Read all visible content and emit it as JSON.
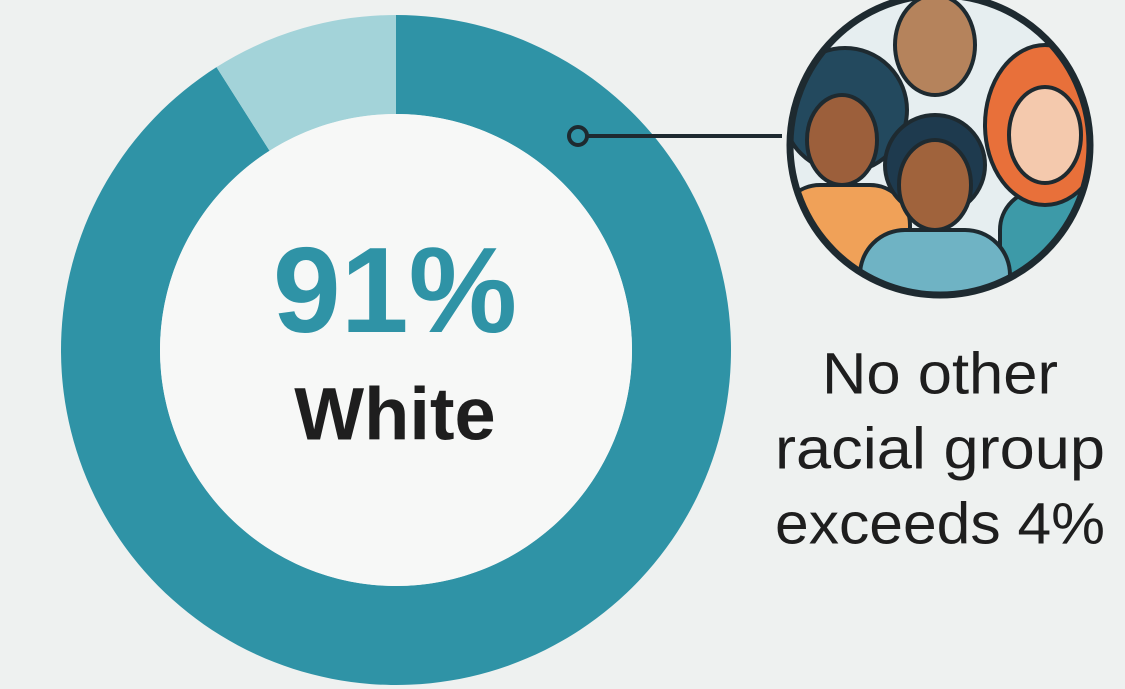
{
  "chart_data": {
    "type": "donut",
    "categories": [
      "White",
      null
    ],
    "values": [
      91,
      9
    ],
    "value_labels": [
      "91%",
      null
    ],
    "colors": [
      "#2f93a6",
      "#a3d3d9"
    ],
    "annotation": [
      "No other",
      "racial group",
      "exceeds 4%"
    ]
  }
}
